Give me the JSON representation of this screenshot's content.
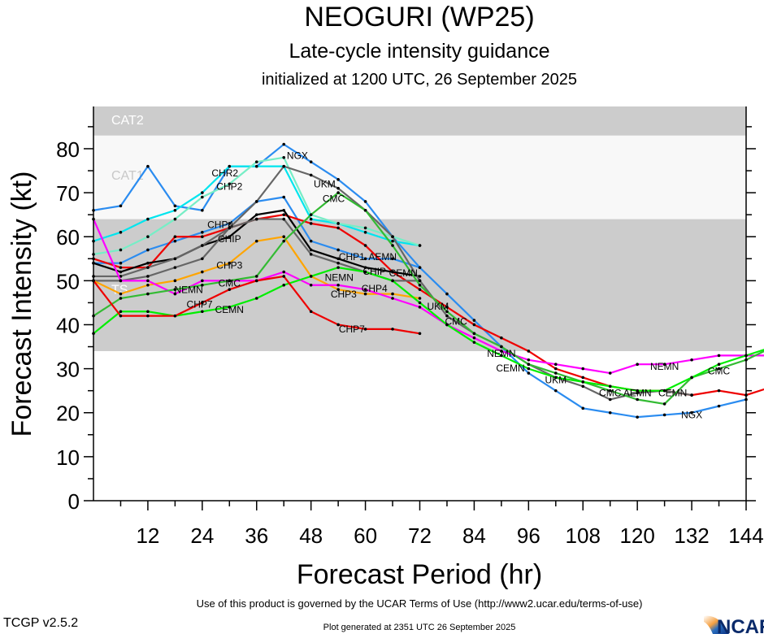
{
  "chart_data": {
    "type": "line",
    "title": "NEOGURI (WP25)",
    "subtitle": "Late-cycle intensity guidance",
    "subtitle2": "initialized at 1200 UTC, 26 September 2025",
    "xlabel": "Forecast Period (hr)",
    "ylabel": "Forecast Intensity (kt)",
    "xlim": [
      0,
      144
    ],
    "ylim": [
      0,
      89.6
    ],
    "xticks": [
      12,
      24,
      36,
      48,
      60,
      72,
      84,
      96,
      108,
      120,
      132,
      144
    ],
    "yticks": [
      0,
      10,
      20,
      30,
      40,
      50,
      60,
      70,
      80
    ],
    "grid": false,
    "bands": [
      {
        "name": "TS",
        "from": 34,
        "to": 64,
        "color": "#cccccc",
        "label_color": "#ffffff"
      },
      {
        "name": "CAT1",
        "from": 64,
        "to": 83,
        "color": "#f8f8f8",
        "label_color": "#c8c8c8"
      },
      {
        "name": "CAT2",
        "from": 83,
        "to": 89.6,
        "color": "#cccccc",
        "label_color": "#ffffff"
      }
    ],
    "x_step_hours": 6,
    "series": [
      {
        "name": "NGX",
        "color": "#2b8cf0",
        "values": [
          66,
          67,
          76,
          67,
          66,
          76,
          76,
          81,
          77,
          73,
          68,
          60,
          53,
          47,
          41,
          35,
          29,
          25,
          21,
          20,
          19,
          19.5,
          20,
          21.5,
          23
        ],
        "labels": [
          45,
          132
        ]
      },
      {
        "name": "CHR2",
        "color": "#00e5ee",
        "values": [
          59,
          61,
          64,
          66,
          70,
          76,
          76,
          76,
          64,
          63,
          61,
          59,
          58
        ],
        "labels": [
          29
        ]
      },
      {
        "name": "CHP2",
        "color": "#76eec6",
        "values": [
          56,
          57,
          60,
          64,
          69,
          72,
          77,
          78,
          65,
          63,
          62,
          60,
          58
        ],
        "labels": [
          30
        ]
      },
      {
        "name": "CHP1",
        "color": "#2b8cf0",
        "values": [
          54,
          54,
          57,
          59,
          61,
          63,
          68,
          69,
          59,
          57,
          55,
          55,
          53
        ],
        "labels": [
          57
        ]
      },
      {
        "name": "AEMN",
        "color": "#ee0000",
        "values": [
          55,
          53,
          53,
          60,
          60,
          62,
          64,
          65,
          63,
          62,
          58,
          52,
          48,
          44,
          40,
          37,
          34,
          30,
          28,
          26,
          25,
          25,
          24,
          25,
          24,
          26,
          27
        ],
        "labels": [
          62,
          120
        ]
      },
      {
        "name": "CHIP",
        "color": "#000000",
        "values": [
          54,
          52,
          54,
          55,
          58,
          60,
          65,
          66,
          57,
          55,
          53,
          52,
          51
        ],
        "labels": [
          30,
          62
        ]
      },
      {
        "name": "UKM",
        "color": "#666666",
        "values": [
          50,
          50,
          51,
          53,
          55,
          62,
          68,
          76,
          74,
          71,
          66,
          60,
          50,
          42,
          38,
          35,
          31,
          28,
          26,
          23,
          24.5,
          25,
          24
        ],
        "labels": [
          51,
          76,
          102
        ]
      },
      {
        "name": "CHP4",
        "color": "#666666",
        "values": [
          51,
          51,
          53,
          55,
          58,
          62,
          64,
          64,
          56,
          54,
          52,
          50,
          50
        ],
        "labels": [
          28,
          62
        ]
      },
      {
        "name": "CHP3",
        "color": "#ffa500",
        "values": [
          50,
          47,
          49,
          50,
          52,
          54,
          59,
          60,
          51,
          48,
          47,
          47,
          46
        ],
        "labels": [
          30,
          57
        ]
      },
      {
        "name": "NEMN",
        "color": "#ff00ff",
        "values": [
          64,
          50,
          50,
          47,
          50,
          50,
          50,
          52,
          49,
          49,
          48,
          46,
          44,
          40,
          37,
          34,
          32,
          31,
          30,
          29,
          31,
          31,
          32,
          33,
          33,
          33
        ],
        "labels": [
          21,
          56,
          90,
          126
        ]
      },
      {
        "name": "CMC",
        "color": "#33bb33",
        "values": [
          42,
          46,
          47,
          48,
          49,
          50,
          51,
          59,
          65,
          70,
          66,
          58,
          49,
          43,
          38,
          35,
          31,
          29,
          27,
          25,
          23,
          22,
          28,
          30,
          32,
          35,
          42
        ],
        "labels": [
          30,
          53,
          80,
          114,
          138
        ]
      },
      {
        "name": "CEMN",
        "color": "#00ee00",
        "values": [
          38,
          43,
          43,
          42,
          43,
          44,
          46,
          49,
          51,
          53,
          52,
          50,
          45,
          40,
          36,
          33,
          30,
          28,
          27,
          26,
          25,
          25,
          28,
          31,
          33,
          35,
          39
        ],
        "labels": [
          30,
          63,
          92,
          126
        ]
      },
      {
        "name": "CHP7",
        "color": "#ee0000",
        "values": [
          50,
          42,
          42,
          42,
          45,
          48,
          50,
          51,
          43,
          40,
          39,
          39,
          38
        ],
        "labels": [
          27,
          57
        ]
      }
    ],
    "credits": {
      "terms": "Use of this product is governed by the UCAR Terms of Use (http://www2.ucar.edu/terms-of-use)",
      "version": "TCGP v2.5.2",
      "generated": "Plot generated at 2351 UTC   26 September 2025",
      "logo": "NCAR"
    }
  }
}
